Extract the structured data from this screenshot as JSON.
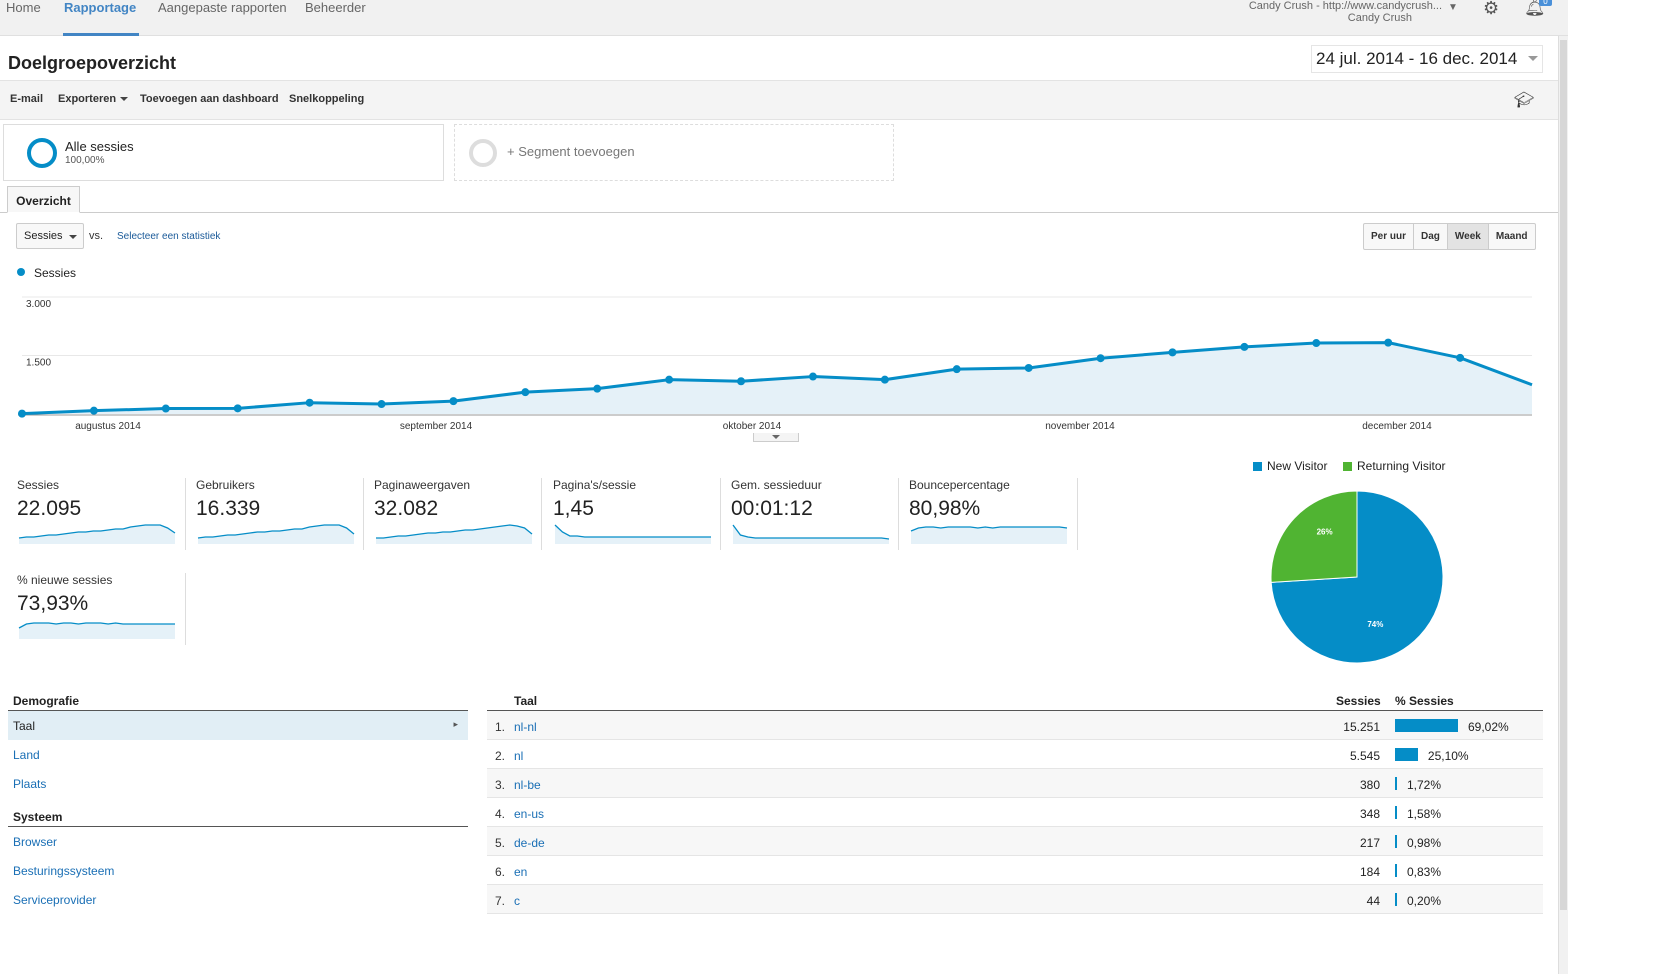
{
  "nav": {
    "items": [
      "Home",
      "Rapportage",
      "Aangepaste rapporten",
      "Beheerder"
    ],
    "active": "Rapportage",
    "account_line1": "Candy Crush - http://www.candycrush...",
    "account_line2": "Candy Crush",
    "notification_count": "0"
  },
  "header": {
    "title": "Doelgroepoverzicht",
    "date_range": "24 jul. 2014 - 16 dec. 2014"
  },
  "toolbar": {
    "email": "E-mail",
    "export": "Exporteren",
    "add_dashboard": "Toevoegen aan dashboard",
    "shortcut": "Snelkoppeling"
  },
  "segments": {
    "all_name": "Alle sessies",
    "all_pct": "100,00%",
    "add_label": "+ Segment toevoegen"
  },
  "tabs": {
    "overview": "Overzicht"
  },
  "controls": {
    "metric": "Sessies",
    "vs": "vs.",
    "select_stat": "Selecteer een statistiek",
    "periods": [
      "Per uur",
      "Dag",
      "Week",
      "Maand"
    ],
    "active_period": "Week"
  },
  "chart_data": [
    {
      "type": "area",
      "series": [
        {
          "name": "Sessies",
          "values": [
            10,
            85,
            140,
            145,
            290,
            255,
            330,
            560,
            650,
            880,
            840,
            960,
            880,
            1150,
            1180,
            1430,
            1580,
            1720,
            1820,
            1830,
            1440,
            750
          ]
        }
      ],
      "color": "#058dc7",
      "yticks": [
        "3.000",
        "1.500"
      ],
      "ytick_values": [
        3000,
        1500
      ],
      "ylim": [
        0,
        3000
      ],
      "x_labels": [
        "augustus 2014",
        "september 2014",
        "oktober 2014",
        "november 2014",
        "december 2014"
      ],
      "legend": "top-left",
      "grid": true
    },
    {
      "type": "pie",
      "slices": [
        {
          "name": "New Visitor",
          "value": 74,
          "label": "74%",
          "color": "#058dc7"
        },
        {
          "name": "Returning Visitor",
          "value": 26,
          "label": "26%",
          "color": "#50b432"
        }
      ],
      "legend": "top"
    }
  ],
  "scorecards": [
    {
      "label": "Sessies",
      "value": "22.095",
      "spark": [
        6,
        7,
        7,
        8,
        9,
        9,
        10,
        11,
        12,
        12,
        13,
        13,
        14,
        15,
        15,
        17,
        18,
        19,
        19,
        19,
        16,
        11
      ]
    },
    {
      "label": "Gebruikers",
      "value": "16.339",
      "spark": [
        6,
        7,
        7,
        8,
        9,
        9,
        10,
        11,
        12,
        12,
        13,
        13,
        14,
        15,
        15,
        17,
        18,
        19,
        19,
        19,
        16,
        10
      ]
    },
    {
      "label": "Paginaweergaven",
      "value": "32.082",
      "spark": [
        6,
        6,
        7,
        8,
        8,
        9,
        10,
        11,
        11,
        12,
        12,
        13,
        14,
        14,
        15,
        16,
        17,
        18,
        19,
        18,
        16,
        10
      ]
    },
    {
      "label": "Pagina's/sessie",
      "value": "1,45",
      "spark": [
        19,
        12,
        8,
        8,
        7,
        7,
        7,
        7,
        7,
        7,
        7,
        7,
        7,
        7,
        7,
        7,
        7,
        7,
        7,
        7,
        7,
        7
      ]
    },
    {
      "label": "Gem. sessieduur",
      "value": "00:01:12",
      "spark": [
        19,
        9,
        7,
        6,
        6,
        6,
        6,
        6,
        6,
        6,
        6,
        6,
        6,
        6,
        6,
        6,
        6,
        6,
        6,
        6,
        6,
        5
      ]
    },
    {
      "label": "Bouncepercentage",
      "value": "80,98%",
      "spark": [
        13,
        16,
        17,
        17,
        16,
        17,
        17,
        17,
        17,
        16,
        17,
        16,
        17,
        17,
        17,
        17,
        17,
        17,
        17,
        17,
        17,
        16
      ]
    },
    {
      "label": "% nieuwe sessies",
      "value": "73,93%",
      "spark": [
        11,
        15,
        16,
        16,
        16,
        15,
        16,
        16,
        15,
        16,
        16,
        16,
        15,
        16,
        15,
        15,
        15,
        15,
        15,
        15,
        15,
        15
      ]
    }
  ],
  "demografie": {
    "heading": "Demografie",
    "items": [
      "Taal",
      "Land",
      "Plaats"
    ],
    "selected": "Taal",
    "system_heading": "Systeem",
    "system_items": [
      "Browser",
      "Besturingssysteem",
      "Serviceprovider"
    ]
  },
  "table": {
    "col_lang": "Taal",
    "col_sessions": "Sessies",
    "col_pct": "% Sessies",
    "rows": [
      {
        "num": "1.",
        "lang": "nl-nl",
        "sessions": "15.251",
        "pct": "69,02%",
        "share": 69.02
      },
      {
        "num": "2.",
        "lang": "nl",
        "sessions": "5.545",
        "pct": "25,10%",
        "share": 25.1
      },
      {
        "num": "3.",
        "lang": "nl-be",
        "sessions": "380",
        "pct": "1,72%",
        "share": 1.72
      },
      {
        "num": "4.",
        "lang": "en-us",
        "sessions": "348",
        "pct": "1,58%",
        "share": 1.58
      },
      {
        "num": "5.",
        "lang": "de-de",
        "sessions": "217",
        "pct": "0,98%",
        "share": 0.98
      },
      {
        "num": "6.",
        "lang": "en",
        "sessions": "184",
        "pct": "0,83%",
        "share": 0.83
      },
      {
        "num": "7.",
        "lang": "c",
        "sessions": "44",
        "pct": "0,20%",
        "share": 0.2
      }
    ]
  }
}
